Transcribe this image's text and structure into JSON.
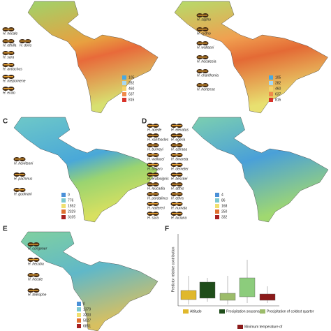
{
  "panels": {
    "a": {
      "species": [
        "H. hecale",
        "H. ethilla",
        "H. doris",
        "H. sara",
        "H. antiochus",
        "H. melpomene",
        "H. erato"
      ],
      "legend_values": [
        105,
        282,
        460,
        637,
        815
      ]
    },
    "b": {
      "species": [
        "H. sapho",
        "H. cydno",
        "H. wallacei",
        "H. hecalesia",
        "H. charithonia",
        "H. hortense"
      ],
      "legend_values": [
        105,
        282,
        460,
        637,
        815
      ]
    },
    "c": {
      "letter": "C",
      "species": [
        "H. hewitsoni",
        "H. pachinus",
        "H. godmani"
      ],
      "legend_values": [
        0,
        776,
        1552,
        2329,
        3105
      ]
    },
    "d": {
      "letter": "D",
      "species": [
        "H. aoede",
        "H. elevatus",
        "H. xanthocles",
        "H. egeria",
        "H. burneyi",
        "H. astraea",
        "H. wallacei",
        "H. timareta",
        "H. tristero",
        "H. demeter",
        "H. eratosignis",
        "H. besckei",
        "H. leucadia",
        "H. atthis",
        "H. pardalinus",
        "H. ethra",
        "H. nattereri",
        "H. numata",
        "H. sara",
        "H. luciana"
      ],
      "legend_values": [
        4,
        86,
        168,
        250,
        332
      ]
    },
    "e": {
      "letter": "E",
      "species": [
        "H. congener",
        "H. hecuba",
        "H. hecale",
        "H. telesiphe"
      ],
      "legend_values": [
        0,
        1379,
        3203,
        5027,
        6851
      ]
    },
    "f": {
      "letter": "F",
      "y_label": "Predictor relative contribution",
      "legend": [
        "Altitude",
        "Precipitation seasonality",
        "Precipitation of coldest quarter",
        "Minimum temperature of"
      ]
    }
  }
}
